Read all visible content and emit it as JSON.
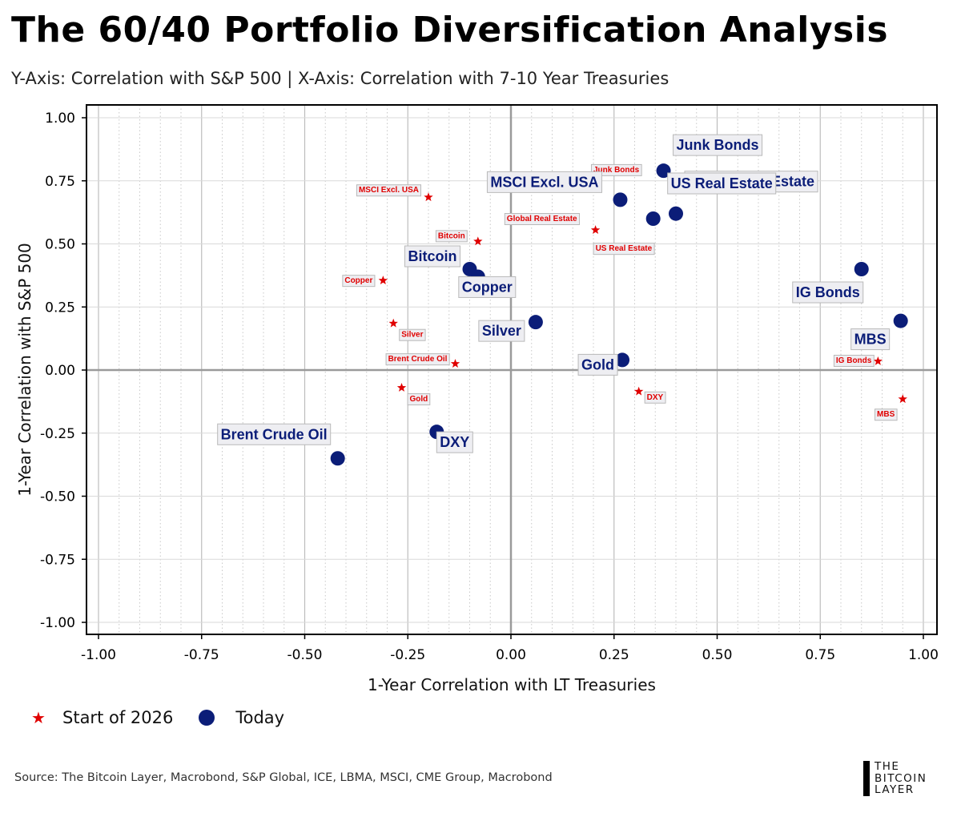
{
  "title": "The 60/40 Portfolio Diversification Analysis",
  "subtitle": "Y-Axis: Correlation with S&P 500 | X-Axis: Correlation with 7-10 Year Treasuries",
  "legend": {
    "start_label": "Start of 2026",
    "today_label": "Today"
  },
  "source": "Source: The Bitcoin Layer, Macrobond, S&P Global, ICE, LBMA, MSCI, CME Group, Macrobond",
  "logo": {
    "line1": "THE",
    "line2": "BITCOIN",
    "line3": "LAYER"
  },
  "colors": {
    "today": "#0b1d78",
    "start": "#e00000"
  },
  "chart_data": {
    "type": "scatter",
    "xlabel": "1-Year Correlation with LT Treasuries",
    "ylabel": "1-Year Correlation with S&P 500",
    "xlim": [
      -1.0,
      1.0
    ],
    "ylim": [
      -1.0,
      1.0
    ],
    "xticks": [
      "-1.00",
      "-0.75",
      "-0.50",
      "-0.25",
      "0.00",
      "0.25",
      "0.50",
      "0.75",
      "1.00"
    ],
    "yticks": [
      "1.00",
      "0.75",
      "0.50",
      "0.25",
      "0.00",
      "-0.25",
      "-0.50",
      "-0.75",
      "-1.00"
    ],
    "grid": true,
    "legend_position": "bottom-left",
    "series": [
      {
        "name": "Start of 2026",
        "marker": "star",
        "points": [
          {
            "label": "Junk Bonds",
            "x": 0.165,
            "y": 0.74
          },
          {
            "label": "MSCI Excl. USA",
            "x": -0.2,
            "y": 0.685
          },
          {
            "label": "Bitcoin",
            "x": -0.08,
            "y": 0.51
          },
          {
            "label": "Global Real Estate",
            "x": 0.12,
            "y": 0.6
          },
          {
            "label": "US Real Estate",
            "x": 0.205,
            "y": 0.555
          },
          {
            "label": "Copper",
            "x": -0.31,
            "y": 0.355
          },
          {
            "label": "Silver",
            "x": -0.285,
            "y": 0.185
          },
          {
            "label": "Brent Crude Oil",
            "x": -0.135,
            "y": 0.025
          },
          {
            "label": "Gold",
            "x": -0.265,
            "y": -0.07
          },
          {
            "label": "DXY",
            "x": 0.31,
            "y": -0.085
          },
          {
            "label": "IG Bonds",
            "x": 0.89,
            "y": 0.035
          },
          {
            "label": "MBS",
            "x": 0.95,
            "y": -0.115
          }
        ]
      },
      {
        "name": "Today",
        "marker": "circle",
        "points": [
          {
            "label": "Junk Bonds",
            "x": 0.37,
            "y": 0.79
          },
          {
            "label": "Global Real Estate",
            "x": 0.4,
            "y": 0.62
          },
          {
            "label": "MSCI Excl. USA",
            "x": 0.265,
            "y": 0.675
          },
          {
            "label": "US Real Estate",
            "x": 0.345,
            "y": 0.6
          },
          {
            "label": "Bitcoin",
            "x": -0.1,
            "y": 0.4
          },
          {
            "label": "Copper",
            "x": -0.08,
            "y": 0.37
          },
          {
            "label": "Silver",
            "x": 0.06,
            "y": 0.19
          },
          {
            "label": "Gold",
            "x": 0.27,
            "y": 0.04
          },
          {
            "label": "IG Bonds",
            "x": 0.85,
            "y": 0.4
          },
          {
            "label": "MBS",
            "x": 0.945,
            "y": 0.195
          },
          {
            "label": "DXY",
            "x": -0.18,
            "y": -0.245
          },
          {
            "label": "Brent Crude Oil",
            "x": -0.42,
            "y": -0.35
          }
        ]
      }
    ]
  }
}
